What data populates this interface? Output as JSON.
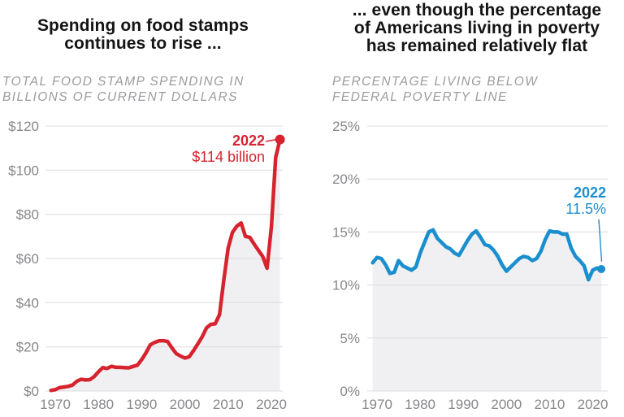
{
  "page": {
    "background": "#ffffff"
  },
  "style": {
    "grid_color": "#dcdce0",
    "tick_color": "#87878b",
    "title_color": "#141414",
    "subtitle_color": "#9b9ba0"
  },
  "chart_data": [
    {
      "type": "area",
      "title_lines": [
        "Spending on food stamps",
        "continues to rise ..."
      ],
      "subtitle_lines": [
        "TOTAL FOOD STAMP SPENDING IN",
        "BILLIONS OF CURRENT DOLLARS"
      ],
      "color": "#d7232e",
      "area_fill": "#f0f0f2",
      "x": [
        1969,
        1970,
        1971,
        1972,
        1973,
        1974,
        1975,
        1976,
        1977,
        1978,
        1979,
        1980,
        1981,
        1982,
        1983,
        1984,
        1985,
        1986,
        1987,
        1988,
        1989,
        1990,
        1991,
        1992,
        1993,
        1994,
        1995,
        1996,
        1997,
        1998,
        1999,
        2000,
        2001,
        2002,
        2003,
        2004,
        2005,
        2006,
        2007,
        2008,
        2009,
        2010,
        2011,
        2012,
        2013,
        2014,
        2015,
        2016,
        2017,
        2018,
        2019,
        2020,
        2021,
        2022
      ],
      "values": [
        0.25,
        0.58,
        1.52,
        1.8,
        2.1,
        2.7,
        4.4,
        5.3,
        5.0,
        5.1,
        6.5,
        8.7,
        10.6,
        10.2,
        11.2,
        10.7,
        10.7,
        10.6,
        10.5,
        11.1,
        11.7,
        14.2,
        17.3,
        20.9,
        22.0,
        22.7,
        22.8,
        22.4,
        19.5,
        16.9,
        15.8,
        14.9,
        15.5,
        18.3,
        21.4,
        24.6,
        28.6,
        30.2,
        30.4,
        34.6,
        50.4,
        64.7,
        71.8,
        74.6,
        76.1,
        70.0,
        69.6,
        66.6,
        63.7,
        60.9,
        55.6,
        74.2,
        105.8,
        113.9
      ],
      "ylim": [
        0,
        120
      ],
      "xlim": [
        1969,
        2022
      ],
      "grid": "horizontal",
      "legend": "none",
      "y_ticks": [
        {
          "value": 0,
          "label": "$0"
        },
        {
          "value": 20,
          "label": "$20"
        },
        {
          "value": 40,
          "label": "$40"
        },
        {
          "value": 60,
          "label": "$60"
        },
        {
          "value": 80,
          "label": "$80"
        },
        {
          "value": 100,
          "label": "$100"
        },
        {
          "value": 120,
          "label": "$120"
        }
      ],
      "x_ticks": [
        {
          "value": 1970,
          "label": "1970"
        },
        {
          "value": 1980,
          "label": "1980"
        },
        {
          "value": 1990,
          "label": "1990"
        },
        {
          "value": 2000,
          "label": "2000"
        },
        {
          "value": 2010,
          "label": "2010"
        },
        {
          "value": 2020,
          "label": "2020"
        }
      ],
      "annotation": {
        "year": "2022",
        "value": "$114 billion",
        "point_year": 2022,
        "point_value": 113.9
      }
    },
    {
      "type": "area",
      "title_lines": [
        "... even though the percentage",
        "of Americans living in poverty",
        "has remained relatively flat"
      ],
      "subtitle_lines": [
        "PERCENTAGE LIVING BELOW",
        "FEDERAL POVERTY LINE"
      ],
      "color": "#1b8fce",
      "area_fill": "#f0f0f2",
      "x": [
        1969,
        1970,
        1971,
        1972,
        1973,
        1974,
        1975,
        1976,
        1977,
        1978,
        1979,
        1980,
        1981,
        1982,
        1983,
        1984,
        1985,
        1986,
        1987,
        1988,
        1989,
        1990,
        1991,
        1992,
        1993,
        1994,
        1995,
        1996,
        1997,
        1998,
        1999,
        2000,
        2001,
        2002,
        2003,
        2004,
        2005,
        2006,
        2007,
        2008,
        2009,
        2010,
        2011,
        2012,
        2013,
        2014,
        2015,
        2016,
        2017,
        2018,
        2019,
        2020,
        2021,
        2022
      ],
      "values": [
        12.1,
        12.6,
        12.5,
        11.9,
        11.1,
        11.2,
        12.3,
        11.8,
        11.6,
        11.4,
        11.7,
        13.0,
        14.0,
        15.0,
        15.2,
        14.4,
        14.0,
        13.6,
        13.4,
        13.0,
        12.8,
        13.5,
        14.2,
        14.8,
        15.1,
        14.5,
        13.8,
        13.7,
        13.3,
        12.7,
        11.9,
        11.3,
        11.7,
        12.1,
        12.5,
        12.7,
        12.6,
        12.3,
        12.5,
        13.2,
        14.3,
        15.1,
        15.0,
        15.0,
        14.8,
        14.8,
        13.5,
        12.7,
        12.3,
        11.8,
        10.5,
        11.4,
        11.6,
        11.5
      ],
      "ylim": [
        0,
        25
      ],
      "xlim": [
        1969,
        2022
      ],
      "grid": "horizontal",
      "legend": "none",
      "y_ticks": [
        {
          "value": 0,
          "label": "0%"
        },
        {
          "value": 5,
          "label": "5%"
        },
        {
          "value": 10,
          "label": "10%"
        },
        {
          "value": 15,
          "label": "15%"
        },
        {
          "value": 20,
          "label": "20%"
        },
        {
          "value": 25,
          "label": "25%"
        }
      ],
      "x_ticks": [
        {
          "value": 1970,
          "label": "1970"
        },
        {
          "value": 1980,
          "label": "1980"
        },
        {
          "value": 1990,
          "label": "1990"
        },
        {
          "value": 2000,
          "label": "2000"
        },
        {
          "value": 2010,
          "label": "2010"
        },
        {
          "value": 2020,
          "label": "2020"
        }
      ],
      "annotation": {
        "year": "2022",
        "value": "11.5%",
        "point_year": 2022,
        "point_value": 11.5
      }
    }
  ]
}
